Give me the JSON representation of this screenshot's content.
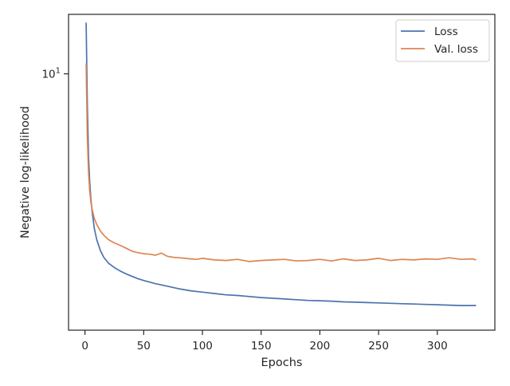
{
  "chart_data": {
    "type": "line",
    "title": "",
    "xlabel": "Epochs",
    "ylabel": "Negative log-likelihood",
    "xlim": [
      -14,
      349
    ],
    "ylim": [
      1.555,
      15.4
    ],
    "yscale": "log",
    "x_ticks": [
      0,
      50,
      100,
      150,
      200,
      250,
      300
    ],
    "y_ticks": [
      {
        "value": 10,
        "label": "10",
        "sup": "1"
      }
    ],
    "grid": false,
    "legend": {
      "position": "top-right"
    },
    "series": [
      {
        "name": "Loss",
        "color": "#4c72b0",
        "x": [
          1,
          2,
          3,
          4,
          5,
          6,
          8,
          10,
          13,
          16,
          20,
          25,
          30,
          35,
          40,
          45,
          50,
          60,
          70,
          80,
          90,
          100,
          110,
          120,
          130,
          140,
          150,
          160,
          170,
          180,
          190,
          200,
          210,
          220,
          230,
          240,
          250,
          260,
          270,
          280,
          290,
          300,
          310,
          320,
          333
        ],
        "y": [
          14.5,
          8.0,
          5.5,
          4.6,
          4.05,
          3.7,
          3.25,
          3.0,
          2.78,
          2.64,
          2.53,
          2.45,
          2.39,
          2.34,
          2.3,
          2.26,
          2.23,
          2.18,
          2.14,
          2.1,
          2.07,
          2.05,
          2.03,
          2.01,
          2.0,
          1.985,
          1.97,
          1.96,
          1.95,
          1.94,
          1.93,
          1.925,
          1.92,
          1.91,
          1.905,
          1.9,
          1.895,
          1.89,
          1.885,
          1.88,
          1.875,
          1.87,
          1.865,
          1.86,
          1.86
        ]
      },
      {
        "name": "Val. loss",
        "color": "#dd8452",
        "x": [
          1,
          2,
          3,
          4,
          5,
          6,
          8,
          10,
          13,
          16,
          20,
          25,
          30,
          35,
          40,
          45,
          50,
          55,
          60,
          65,
          70,
          75,
          80,
          85,
          90,
          95,
          100,
          110,
          120,
          130,
          140,
          150,
          160,
          170,
          180,
          190,
          200,
          210,
          220,
          230,
          240,
          250,
          260,
          270,
          280,
          290,
          300,
          310,
          320,
          330,
          333
        ],
        "y": [
          10.8,
          6.3,
          4.9,
          4.3,
          3.95,
          3.75,
          3.5,
          3.35,
          3.2,
          3.1,
          3.0,
          2.93,
          2.88,
          2.82,
          2.76,
          2.73,
          2.71,
          2.7,
          2.68,
          2.72,
          2.66,
          2.64,
          2.63,
          2.62,
          2.61,
          2.6,
          2.62,
          2.59,
          2.58,
          2.6,
          2.56,
          2.58,
          2.59,
          2.6,
          2.57,
          2.58,
          2.6,
          2.57,
          2.61,
          2.58,
          2.59,
          2.62,
          2.58,
          2.6,
          2.59,
          2.61,
          2.6,
          2.63,
          2.6,
          2.61,
          2.59
        ]
      }
    ]
  }
}
